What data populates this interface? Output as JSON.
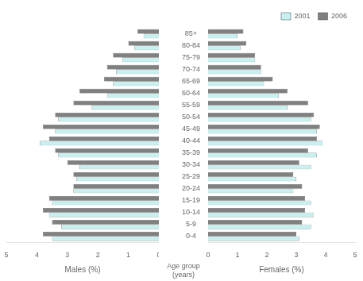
{
  "chart_data": [
    {
      "type": "bar",
      "orientation": "horizontal",
      "categories": [
        "0-4",
        "5-9",
        "10-14",
        "15-19",
        "20-24",
        "25-29",
        "30-34",
        "35-39",
        "40-44",
        "45-49",
        "50-54",
        "55-59",
        "60-64",
        "65-69",
        "70-74",
        "75-79",
        "80-84",
        "85+"
      ],
      "series": [
        {
          "name": "2006",
          "color": "#808080",
          "values": [
            3.8,
            3.5,
            3.8,
            3.6,
            2.8,
            2.8,
            3.0,
            3.4,
            3.6,
            3.8,
            3.4,
            2.8,
            2.6,
            1.8,
            1.7,
            1.5,
            1.0,
            0.7
          ]
        },
        {
          "name": "2001",
          "color": "#c8f0f0",
          "values": [
            3.5,
            3.2,
            3.6,
            3.5,
            2.8,
            2.7,
            2.6,
            3.3,
            3.9,
            3.4,
            3.3,
            2.2,
            1.7,
            1.5,
            1.4,
            1.2,
            0.8,
            0.5
          ]
        }
      ],
      "xlabel": "Males (%)",
      "xlim": [
        5,
        0
      ],
      "xticks": [
        0,
        1,
        2,
        3,
        4,
        5
      ],
      "grid": false,
      "tick_labels": "x"
    },
    {
      "type": "bar",
      "orientation": "horizontal",
      "categories": [
        "0-4",
        "5-9",
        "10-14",
        "15-19",
        "20-24",
        "25-29",
        "30-34",
        "35-39",
        "40-44",
        "45-49",
        "50-54",
        "55-59",
        "60-64",
        "65-69",
        "70-74",
        "75-79",
        "80-84",
        "85+"
      ],
      "series": [
        {
          "name": "2006",
          "color": "#808080",
          "values": [
            3.0,
            3.2,
            3.3,
            3.3,
            3.2,
            2.9,
            3.1,
            3.4,
            3.7,
            3.8,
            3.6,
            3.4,
            2.7,
            2.2,
            1.8,
            1.6,
            1.3,
            1.2
          ]
        },
        {
          "name": "2001",
          "color": "#c8f0f0",
          "values": [
            3.1,
            3.5,
            3.6,
            3.5,
            2.9,
            3.0,
            3.5,
            3.7,
            3.9,
            3.7,
            3.5,
            2.7,
            2.4,
            1.9,
            1.8,
            1.6,
            1.1,
            1.0
          ]
        }
      ],
      "xlabel": "Females (%)",
      "ylabel": "Age group\n(years)",
      "xlim": [
        0,
        5
      ],
      "xticks": [
        0,
        1,
        2,
        3,
        4,
        5
      ],
      "grid": false,
      "legend": "upper right"
    }
  ]
}
